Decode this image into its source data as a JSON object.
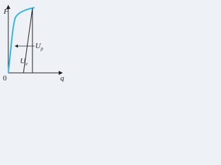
{
  "axes": {
    "y_label": "F",
    "x_label": "q",
    "origin": "0"
  },
  "regions": {
    "plastic": {
      "symbol": "U",
      "subscript": "p"
    },
    "elastic": {
      "symbol": "U",
      "subscript": "e"
    }
  }
}
